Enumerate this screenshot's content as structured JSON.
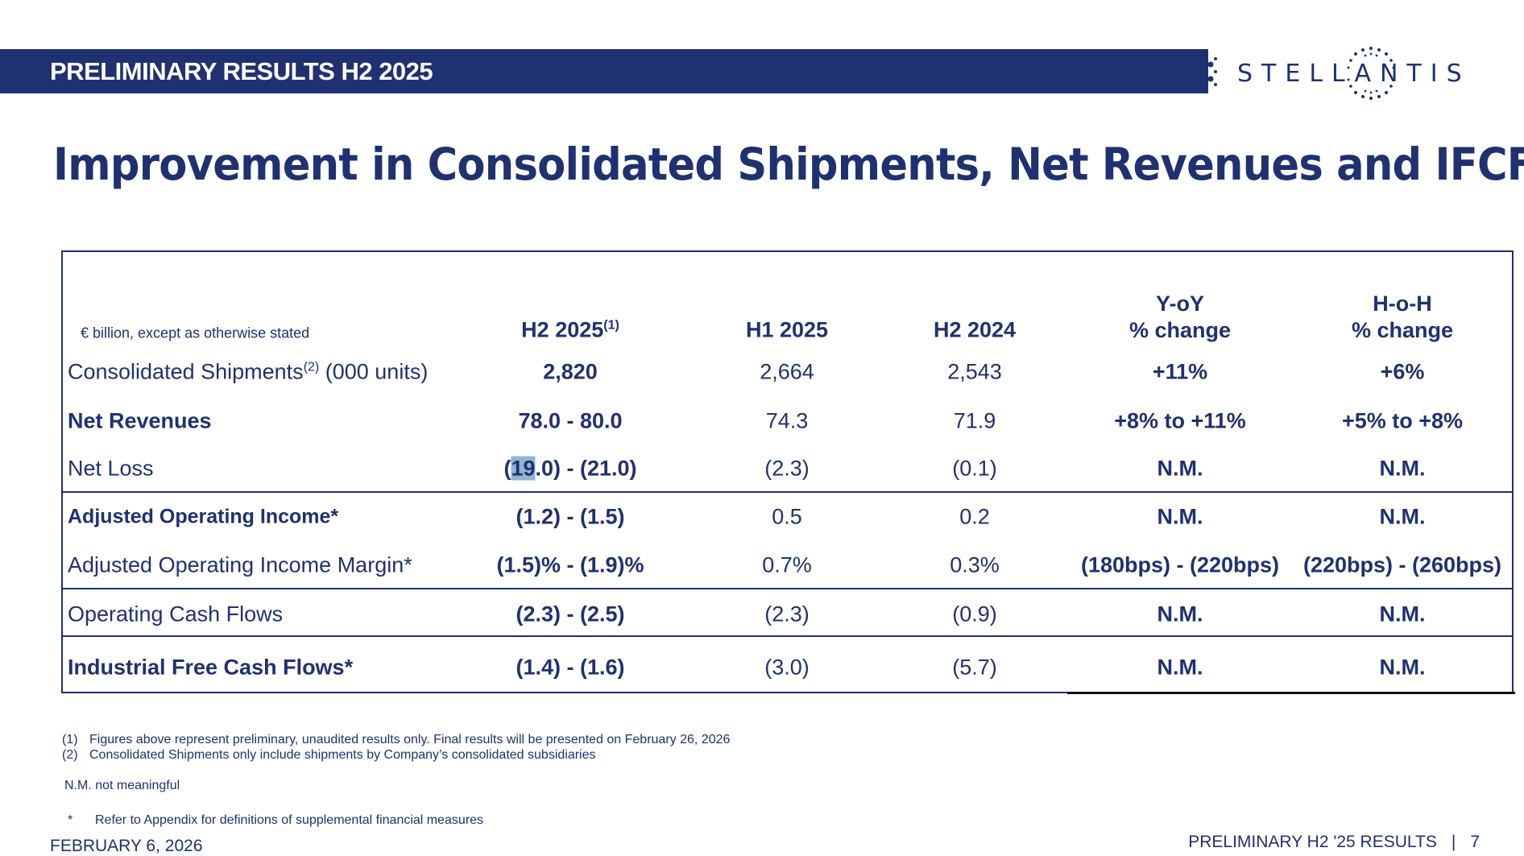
{
  "banner": {
    "title": "PRELIMINARY RESULTS H2 2025"
  },
  "logo": {
    "text": "STELLANTIS"
  },
  "page_title": "Improvement in Consolidated Shipments, Net Revenues and IFCF",
  "table": {
    "unit_note": "€ billion, except as otherwise stated",
    "columns": [
      {
        "label": "H2 2025",
        "sup": "(1)"
      },
      {
        "label": "H1 2025"
      },
      {
        "label": "H2 2024"
      },
      {
        "line1": "Y-oY",
        "line2": "% change"
      },
      {
        "line1": "H-o-H",
        "line2": "% change"
      }
    ],
    "rows": [
      {
        "label": "Consolidated Shipments",
        "label_sup": "(2)",
        "label_suffix": " (000 units)",
        "bold": false,
        "values": [
          "2,820",
          "2,664",
          "2,543",
          "+11%",
          "+6%"
        ]
      },
      {
        "label": "Net Revenues",
        "bold": true,
        "values": [
          "78.0 - 80.0",
          "74.3",
          "71.9",
          "+8% to +11%",
          "+5% to +8%"
        ]
      },
      {
        "label": "Net Loss",
        "bold": false,
        "values": [
          "(19.0) - (21.0)",
          "(2.3)",
          "(0.1)",
          "N.M.",
          "N.M."
        ],
        "selected_text": "19"
      },
      {
        "label": "Adjusted Operating Income*",
        "bold": true,
        "values": [
          "(1.2) - (1.5)",
          "0.5",
          "0.2",
          "N.M.",
          "N.M."
        ]
      },
      {
        "label": "Adjusted Operating Income Margin*",
        "bold": false,
        "values": [
          "(1.5)% - (1.9)%",
          "0.7%",
          "0.3%",
          "(180bps) - (220bps)",
          "(220bps) - (260bps)"
        ]
      },
      {
        "label": "Operating Cash Flows",
        "bold": false,
        "values": [
          "(2.3) - (2.5)",
          "(2.3)",
          "(0.9)",
          "N.M.",
          "N.M."
        ]
      },
      {
        "label": "Industrial Free Cash Flows*",
        "bold": true,
        "values": [
          "(1.4) - (1.6)",
          "(3.0)",
          "(5.7)",
          "N.M.",
          "N.M."
        ]
      }
    ]
  },
  "footnotes": [
    {
      "marker": "(1)",
      "text": "Figures above represent preliminary, unaudited results only.  Final results will be presented on February 26, 2026"
    },
    {
      "marker": "(2)",
      "text": "Consolidated Shipments only include shipments by Company’s consolidated subsidiaries"
    }
  ],
  "nm_note": "N.M. not meaningful",
  "asterisk_note": {
    "marker": "*",
    "text": "Refer to Appendix for definitions of supplemental financial measures"
  },
  "footer": {
    "date": "FEBRUARY 6, 2026",
    "deck_label": "PRELIMINARY H2 '25 RESULTS",
    "separator": "|",
    "page_number": "7"
  },
  "colors": {
    "brand_navy": "#1f3170",
    "selection": "#8fb5d1"
  }
}
